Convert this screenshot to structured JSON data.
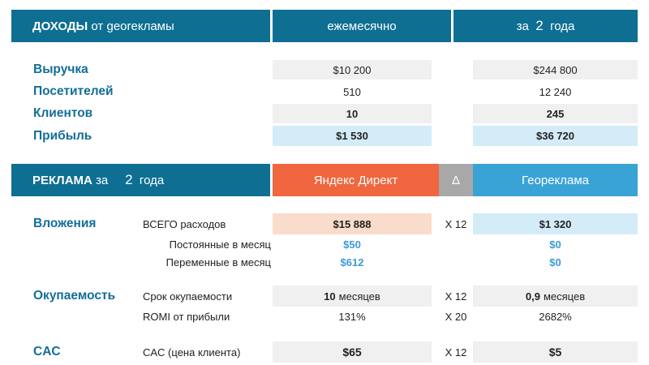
{
  "income": {
    "header": {
      "title_bold": "ДОХОДЫ",
      "title_rest": "от georекламы",
      "col_monthly": "ежемесячно",
      "col_period_prefix": "за",
      "col_period_value": "2",
      "col_period_suffix": "года"
    },
    "rows": [
      {
        "label": "Выручка",
        "monthly": "$10 200",
        "period": "$244 800"
      },
      {
        "label": "Посетителей",
        "monthly": "510",
        "period": "12 240"
      },
      {
        "label": "Клиентов",
        "monthly": "10",
        "period": "245"
      },
      {
        "label": "Прибыль",
        "monthly": "$1 530",
        "period": "$36 720"
      }
    ]
  },
  "ads": {
    "header": {
      "title_bold": "РЕКЛАМА",
      "title_prefix": "за",
      "title_value": "2",
      "title_suffix": "года",
      "col_yandex": "Яндекс Директ",
      "col_delta": "Δ",
      "col_geo": "Геореклама"
    },
    "investment": {
      "label": "Вложения",
      "total": {
        "label": "ВСЕГО расходов",
        "yandex": "$15 888",
        "delta": "X 12",
        "geo": "$1 320"
      },
      "fixed": {
        "label": "Постоянные в месяц",
        "yandex": "$50",
        "geo": "$0"
      },
      "variable": {
        "label": "Переменные в месяц",
        "yandex": "$612",
        "geo": "$0"
      }
    },
    "payback": {
      "label": "Окупаемость",
      "term": {
        "label": "Срок окупаемости",
        "yandex_value": "10",
        "yandex_unit": "месяцев",
        "delta": "X 12",
        "geo_value": "0,9",
        "geo_unit": "месяцев"
      },
      "romi": {
        "label": "ROMI от прибыли",
        "yandex": "131%",
        "delta": "X 20",
        "geo": "2682%"
      }
    },
    "cac": {
      "label": "CAC",
      "row": {
        "label": "CAC (цена клиента)",
        "yandex": "$65",
        "delta": "X 12",
        "geo": "$5"
      }
    }
  },
  "colors": {
    "header_blue": "#0e6f93",
    "label_blue": "#136e99",
    "yandex_red": "#f0663f",
    "geo_blue": "#3aa3d6",
    "delta_grey": "#a8a8a8"
  }
}
